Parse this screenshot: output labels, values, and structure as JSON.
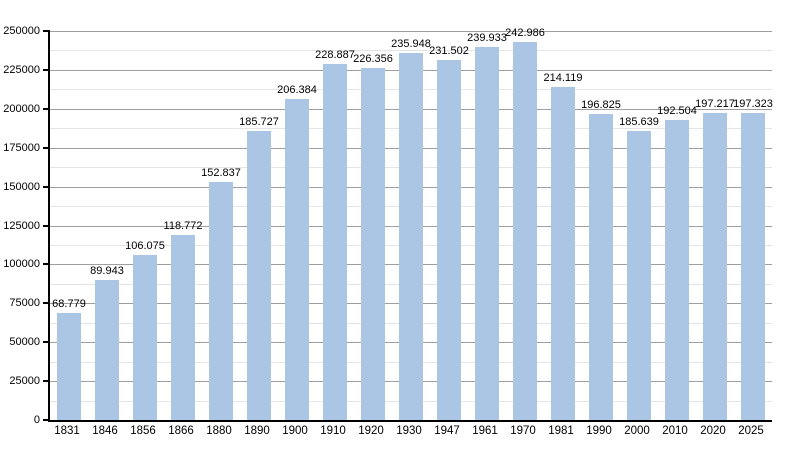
{
  "chart_data": {
    "type": "bar",
    "title": "",
    "xlabel": "",
    "ylabel": "",
    "categories": [
      "1831",
      "1846",
      "1856",
      "1866",
      "1880",
      "1890",
      "1900",
      "1910",
      "1920",
      "1930",
      "1947",
      "1961",
      "1970",
      "1981",
      "1990",
      "2000",
      "2010",
      "2020",
      "2025"
    ],
    "values": [
      68779,
      89943,
      106075,
      118772,
      152837,
      185727,
      206384,
      228887,
      226356,
      235948,
      231502,
      239933,
      242986,
      214119,
      196825,
      185639,
      192504,
      197217,
      197323
    ],
    "value_labels": [
      "68.779",
      "89.943",
      "106.075",
      "118.772",
      "152.837",
      "185.727",
      "206.384",
      "228.887",
      "226.356",
      "235.948",
      "231.502",
      "239.933",
      "242.986",
      "214.119",
      "196.825",
      "185.639",
      "192.504",
      "197.217",
      "197.323"
    ],
    "ylim": [
      0,
      250000
    ],
    "y_major_step": 25000,
    "y_minor_step": 12500,
    "y_tick_labels": [
      "0",
      "25000",
      "50000",
      "75000",
      "100000",
      "125000",
      "150000",
      "175000",
      "200000",
      "225000",
      "250000"
    ],
    "grid": "horizontal, major and minor, on",
    "legend_position": "none",
    "colors": {
      "bar_fill": "#aac6e4",
      "axis": "#000000",
      "major_grid": "#9e9e9e",
      "minor_grid": "#e4e4e4",
      "text": "#000000",
      "background": "#ffffff"
    }
  }
}
